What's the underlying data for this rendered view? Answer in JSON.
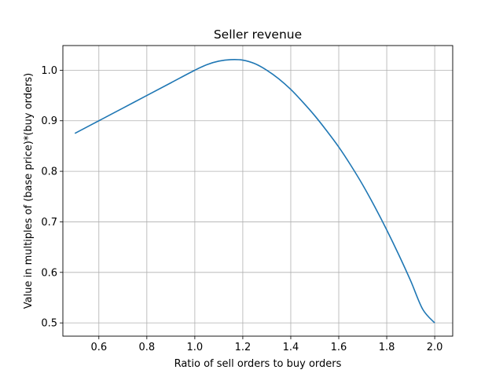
{
  "chart_data": {
    "type": "line",
    "title": "Seller revenue",
    "xlabel": "Ratio of sell orders to buy orders",
    "ylabel": "Value in multiples of (base price)*(buy orders)",
    "xlim": [
      0.45,
      2.075
    ],
    "ylim": [
      0.4738,
      1.0488
    ],
    "xticks": [
      0.6,
      0.8,
      1.0,
      1.2,
      1.4,
      1.6,
      1.8,
      2.0
    ],
    "xtick_labels": [
      "0.6",
      "0.8",
      "1.0",
      "1.2",
      "1.4",
      "1.6",
      "1.8",
      "2.0"
    ],
    "yticks": [
      0.5,
      0.6,
      0.7,
      0.8,
      0.9,
      1.0
    ],
    "ytick_labels": [
      "0.5",
      "0.6",
      "0.7",
      "0.8",
      "0.9",
      "1.0"
    ],
    "grid": true,
    "line_color": "#1f77b4",
    "series": [
      {
        "x": [
          0.5,
          0.6,
          0.7,
          0.8,
          0.9,
          1.0,
          1.05,
          1.1,
          1.15,
          1.2,
          1.25,
          1.3,
          1.35,
          1.4,
          1.45,
          1.5,
          1.55,
          1.6,
          1.65,
          1.7,
          1.75,
          1.8,
          1.85,
          1.9,
          1.95,
          2.0
        ],
        "y": [
          0.875,
          0.9,
          0.925,
          0.95,
          0.975,
          1.0,
          1.011,
          1.018,
          1.021,
          1.02,
          1.013,
          1.0,
          0.983,
          0.962,
          0.937,
          0.91,
          0.88,
          0.848,
          0.812,
          0.773,
          0.73,
          0.684,
          0.635,
          0.583,
          0.527,
          0.5
        ]
      }
    ]
  }
}
